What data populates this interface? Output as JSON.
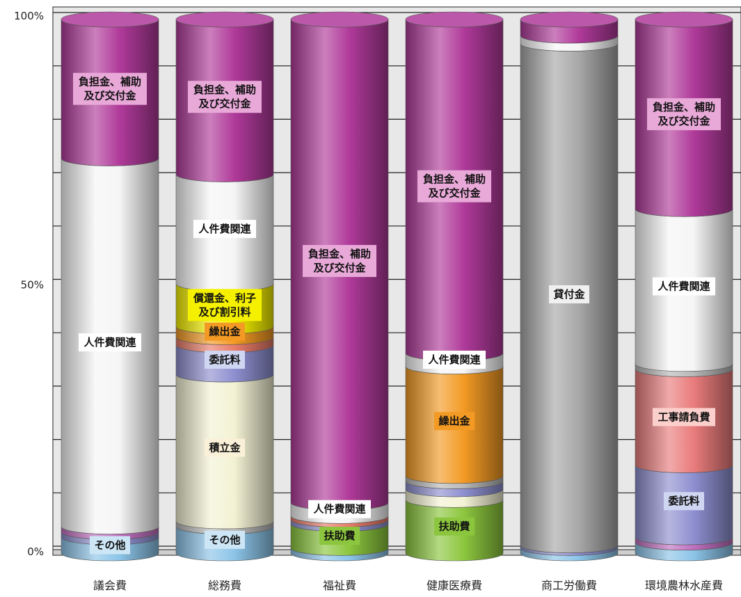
{
  "chart_data": {
    "type": "bar",
    "stacked": true,
    "normalized": true,
    "categories": [
      "議会費",
      "総務費",
      "福祉費",
      "健康医療費",
      "商工労働費",
      "環境農林水産費"
    ],
    "ylim": [
      0,
      100
    ],
    "y_ticks": [
      "0%",
      "50%",
      "100%"
    ],
    "grid": true,
    "columns": [
      {
        "segments": [
          {
            "key": "other",
            "label": "その他",
            "value": 3
          },
          {
            "key": "entrust",
            "label": "",
            "value": 1
          },
          {
            "key": "subsidy_small",
            "label": "",
            "value": 1
          },
          {
            "key": "personnel",
            "label": "人件費関連",
            "value": 69
          },
          {
            "key": "burden",
            "label": "負担金、補助\n及び交付金",
            "value": 26
          }
        ]
      },
      {
        "segments": [
          {
            "key": "other",
            "label": "その他",
            "value": 5
          },
          {
            "key": "minor",
            "label": "",
            "value": 1
          },
          {
            "key": "reserve",
            "label": "積立金",
            "value": 27.5
          },
          {
            "key": "entrust",
            "label": "委託料",
            "value": 5.5
          },
          {
            "key": "transfer_red",
            "label": "",
            "value": 1.5
          },
          {
            "key": "transfer",
            "label": "繰出金",
            "value": 2
          },
          {
            "key": "redemption",
            "label": "償還金、利子\n及び割引料",
            "value": 8
          },
          {
            "key": "personnel",
            "label": "人件費関連",
            "value": 20.5
          },
          {
            "key": "burden",
            "label": "負担金、補助\n及び交付金",
            "value": 29
          }
        ]
      },
      {
        "segments": [
          {
            "key": "other",
            "label": "",
            "value": 1
          },
          {
            "key": "aid",
            "label": "扶助費",
            "value": 4.5
          },
          {
            "key": "entrust",
            "label": "",
            "value": 0.8
          },
          {
            "key": "transfer_red",
            "label": "",
            "value": 0.7
          },
          {
            "key": "personnel",
            "label": "人件費関連",
            "value": 2.5
          },
          {
            "key": "burden",
            "label": "負担金、補助\n及び交付金",
            "value": 90.5
          }
        ]
      },
      {
        "segments": [
          {
            "key": "aid",
            "label": "扶助費",
            "value": 10
          },
          {
            "key": "reserve",
            "label": "",
            "value": 2
          },
          {
            "key": "entrust",
            "label": "",
            "value": 1.5
          },
          {
            "key": "minor",
            "label": "",
            "value": 1
          },
          {
            "key": "transfer",
            "label": "繰出金",
            "value": 20.5
          },
          {
            "key": "personnel",
            "label": "人件費関連",
            "value": 2.5
          },
          {
            "key": "burden",
            "label": "負担金、補助\n及び交付金",
            "value": 62.5
          }
        ]
      },
      {
        "segments": [
          {
            "key": "other",
            "label": "",
            "value": 1
          },
          {
            "key": "entrust",
            "label": "",
            "value": 0.5
          },
          {
            "key": "loan",
            "label": "貸付金",
            "value": 94
          },
          {
            "key": "personnel",
            "label": "",
            "value": 1.5
          },
          {
            "key": "burden",
            "label": "",
            "value": 3
          }
        ]
      },
      {
        "segments": [
          {
            "key": "other",
            "label": "",
            "value": 2
          },
          {
            "key": "subsidy_small",
            "label": "",
            "value": 1
          },
          {
            "key": "entrust",
            "label": "委託料",
            "value": 13.5
          },
          {
            "key": "construction",
            "label": "工事請負費",
            "value": 18
          },
          {
            "key": "minor",
            "label": "",
            "value": 1
          },
          {
            "key": "personnel",
            "label": "人件費関連",
            "value": 29
          },
          {
            "key": "burden",
            "label": "負担金、補助\n及び交付金",
            "value": 35.5
          }
        ]
      }
    ]
  },
  "colors": {
    "burden": "#b03a9a",
    "personnel": "#f5f5f5",
    "other": "#8cc4e8",
    "entrust": "#8e8fd0",
    "subsidy_small": "#c070c0",
    "reserve": "#f3f2d4",
    "transfer": "#f39a24",
    "transfer_red": "#ea7c6a",
    "redemption": "#f4f000",
    "minor": "#b8b8b8",
    "aid": "#8cc63e",
    "loan": "#a8a8a8",
    "construction": "#ea7c7c",
    "grid": "#222222",
    "wall": "#e8e8e8",
    "label_bg_burden": "#e8a8d8",
    "label_bg_personnel": "#ffffff",
    "label_bg_default": "#ffffff"
  }
}
